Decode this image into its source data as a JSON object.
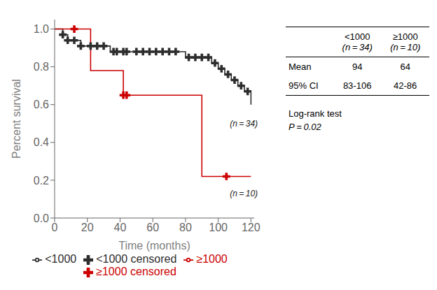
{
  "chart_data": {
    "type": "line",
    "xlabel": "Time (months)",
    "ylabel": "Percent survival",
    "xlim": [
      0,
      122
    ],
    "ylim": [
      0.0,
      1.05
    ],
    "xticks": [
      0,
      20,
      40,
      60,
      80,
      100,
      120
    ],
    "yticks": [
      {
        "value": 0.0,
        "label": "0.0"
      },
      0.2,
      0.4,
      0.6,
      0.8,
      {
        "value": 1.0,
        "label": "1.0"
      }
    ],
    "grid": false,
    "legend": "bottom",
    "series": [
      {
        "name": "<1000",
        "type": "line",
        "line_style": "step",
        "color": "#2d2d2d",
        "x": [
          0,
          5,
          8,
          12,
          16,
          18,
          20,
          22,
          24,
          26,
          28,
          30,
          32,
          34,
          36,
          38,
          40,
          42,
          44,
          46,
          48,
          50,
          52,
          54,
          56,
          58,
          60,
          62,
          64,
          66,
          68,
          70,
          72,
          74,
          76,
          78,
          80,
          82,
          84,
          86,
          88,
          90,
          92,
          94,
          96,
          98,
          100,
          102,
          104,
          106,
          108,
          110,
          112,
          114,
          116,
          118,
          120
        ],
        "values": [
          1.0,
          0.97,
          0.94,
          0.94,
          0.91,
          0.91,
          0.91,
          0.91,
          0.91,
          0.91,
          0.91,
          0.91,
          0.91,
          0.88,
          0.88,
          0.88,
          0.88,
          0.88,
          0.88,
          0.88,
          0.88,
          0.88,
          0.88,
          0.88,
          0.88,
          0.88,
          0.88,
          0.88,
          0.88,
          0.88,
          0.88,
          0.88,
          0.88,
          0.88,
          0.88,
          0.88,
          0.85,
          0.85,
          0.85,
          0.85,
          0.85,
          0.85,
          0.85,
          0.85,
          0.82,
          0.82,
          0.79,
          0.79,
          0.76,
          0.76,
          0.73,
          0.73,
          0.7,
          0.7,
          0.67,
          0.67,
          0.6
        ]
      },
      {
        "name": "≥1000",
        "type": "line",
        "line_style": "step",
        "color": "#cc0000",
        "x": [
          0,
          12,
          22,
          38,
          42,
          44,
          76,
          90,
          105,
          120
        ],
        "values": [
          1.0,
          1.0,
          0.78,
          0.78,
          0.65,
          0.65,
          0.65,
          0.22,
          0.22,
          0.22
        ]
      },
      {
        "name": "<1000 censored",
        "type": "scatter",
        "marker": "+",
        "color": "#2d2d2d",
        "x": [
          5,
          8,
          12,
          16,
          22,
          26,
          30,
          36,
          38,
          42,
          44,
          50,
          54,
          58,
          62,
          66,
          70,
          74,
          82,
          86,
          90,
          94,
          98,
          102,
          106,
          110,
          114,
          118
        ],
        "values": [
          0.97,
          0.94,
          0.94,
          0.91,
          0.91,
          0.91,
          0.91,
          0.88,
          0.88,
          0.88,
          0.88,
          0.88,
          0.88,
          0.88,
          0.88,
          0.88,
          0.88,
          0.88,
          0.85,
          0.85,
          0.85,
          0.85,
          0.82,
          0.79,
          0.76,
          0.73,
          0.7,
          0.67
        ]
      },
      {
        "name": "≥1000 censored",
        "type": "scatter",
        "marker": "+",
        "color": "#cc0000",
        "x": [
          12,
          42,
          44,
          105
        ],
        "values": [
          1.0,
          0.65,
          0.65,
          0.22
        ]
      }
    ],
    "annotations": [
      {
        "x": 105,
        "y": 0.5,
        "text": "(n = 34)"
      },
      {
        "x": 105,
        "y": 0.13,
        "text": "(n = 10)"
      }
    ],
    "table": {
      "columns": [
        {
          "name": "<1000",
          "note": "(n = 34)"
        },
        {
          "name": "≥1000",
          "note": "(n = 10)"
        }
      ],
      "rows": [
        {
          "label": "Mean",
          "values": [
            94,
            64
          ]
        },
        {
          "label": "95% CI",
          "values": [
            "83-106",
            "42-86"
          ]
        }
      ],
      "footer": [
        "Log-rank test",
        "P = 0.02"
      ]
    }
  }
}
